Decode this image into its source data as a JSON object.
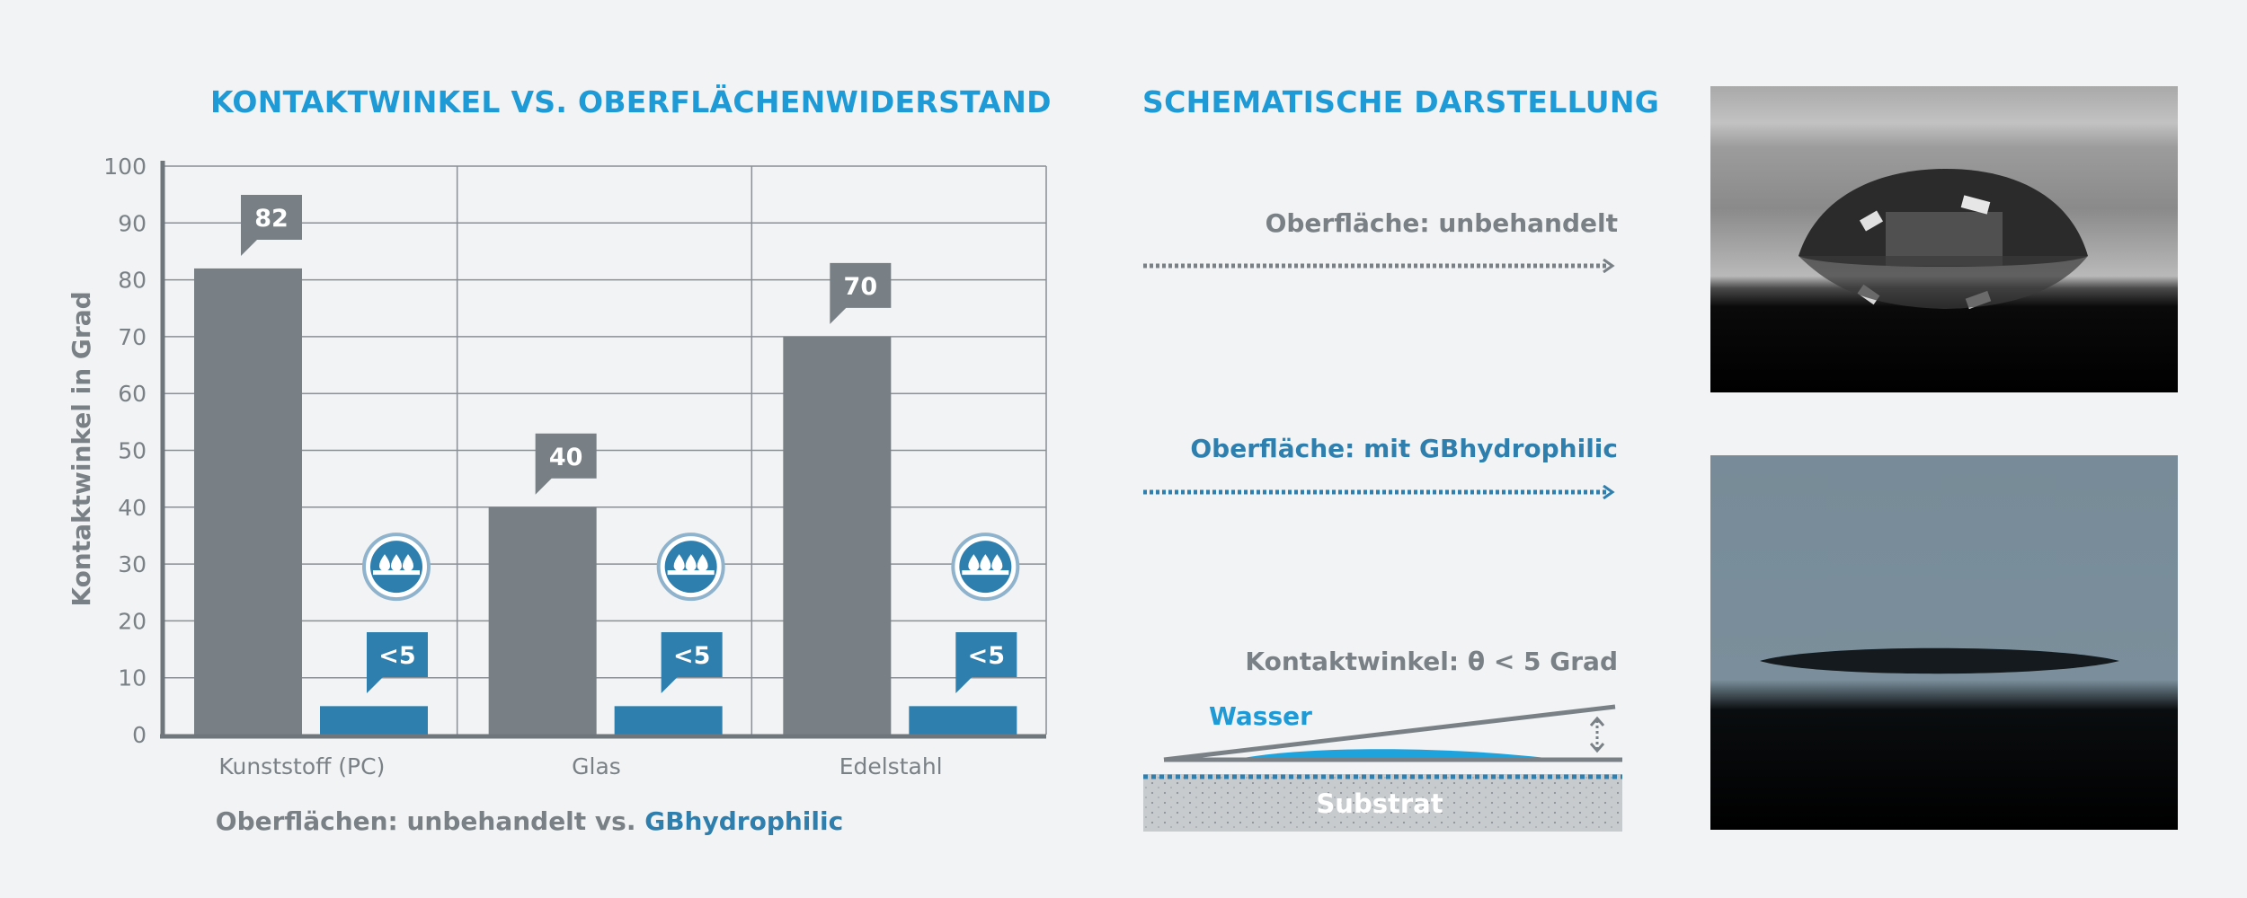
{
  "chart_title": "KONTAKTWINKEL VS. OBERFLÄCHENWIDERSTAND",
  "schema_title": "SCHEMATISCHE DARSTELLUNG",
  "chart_data": {
    "type": "bar",
    "title": "KONTAKTWINKEL VS. OBERFLÄCHENWIDERSTAND",
    "xlabel_main": "Oberflächen: unbehandelt vs. ",
    "xlabel_highlight": "GBhydrophilic",
    "ylabel": "Kontaktwinkel in Grad",
    "ylim": [
      0,
      100
    ],
    "yticks": [
      0,
      10,
      20,
      30,
      40,
      50,
      60,
      70,
      80,
      90,
      100
    ],
    "grid": true,
    "categories": [
      "Kunststoff (PC)",
      "Glas",
      "Edelstahl"
    ],
    "series": [
      {
        "name": "unbehandelt",
        "values": [
          82,
          40,
          70
        ],
        "labels": [
          "82",
          "40",
          "70"
        ],
        "color": "#788085"
      },
      {
        "name": "GBhydrophilic",
        "values": [
          5,
          5,
          5
        ],
        "labels": [
          "<5",
          "<5",
          "<5"
        ],
        "color": "#2f7fae"
      }
    ]
  },
  "schema": {
    "label_untreated": "Oberfläche: unbehandelt",
    "label_treated": "Oberfläche: mit GBhydrophilic",
    "label_angle": "Kontaktwinkel: θ < 5 Grad",
    "water_label": "Wasser",
    "substrate_label": "Substrat"
  },
  "colors": {
    "accent": "#1e9ad6",
    "gray_bar": "#788085",
    "blue_bar": "#2f7fae",
    "background": "#f1f3f4"
  },
  "icons": [
    "water-drop-badge-icon"
  ]
}
